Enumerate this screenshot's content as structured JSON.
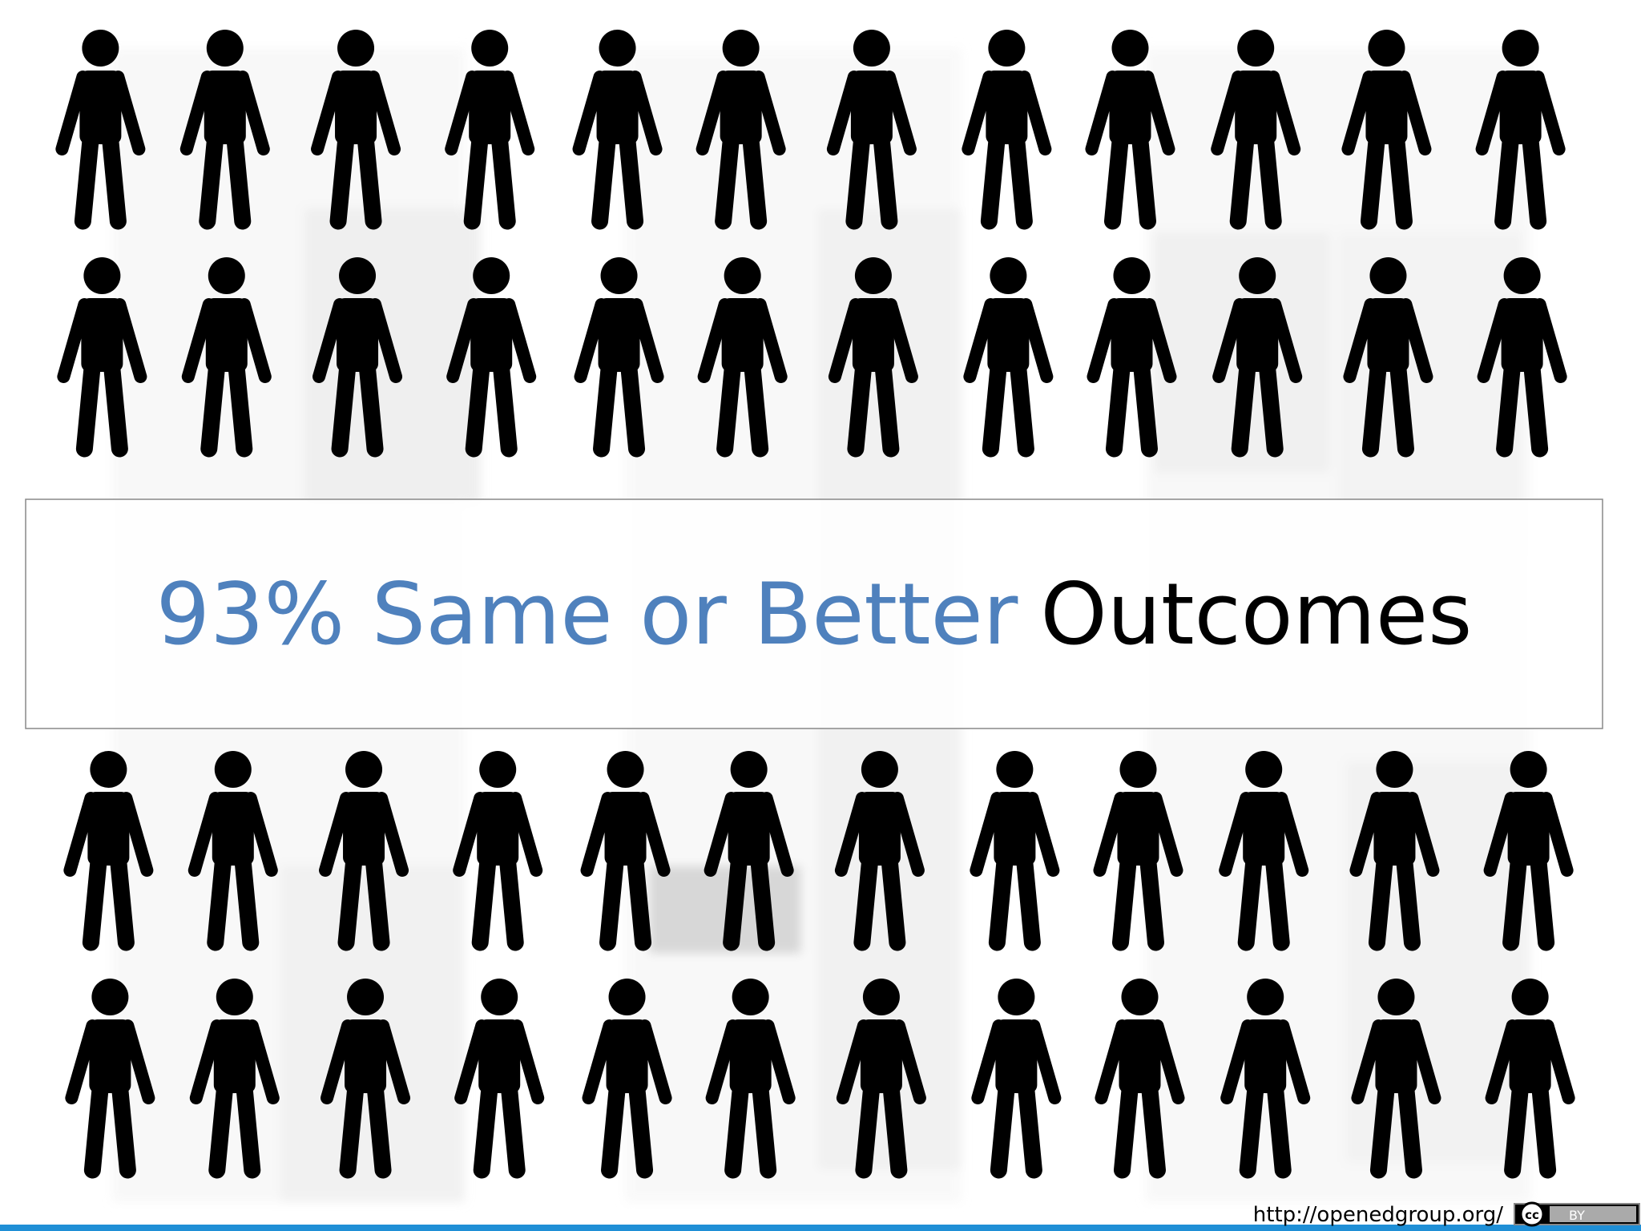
{
  "slide": {
    "headline_highlight": "93% Same or Better",
    "headline_rest": "Outcomes",
    "footer_url": "http://openedgroup.org/",
    "license_cc": "cc",
    "license_by": "BY"
  }
}
